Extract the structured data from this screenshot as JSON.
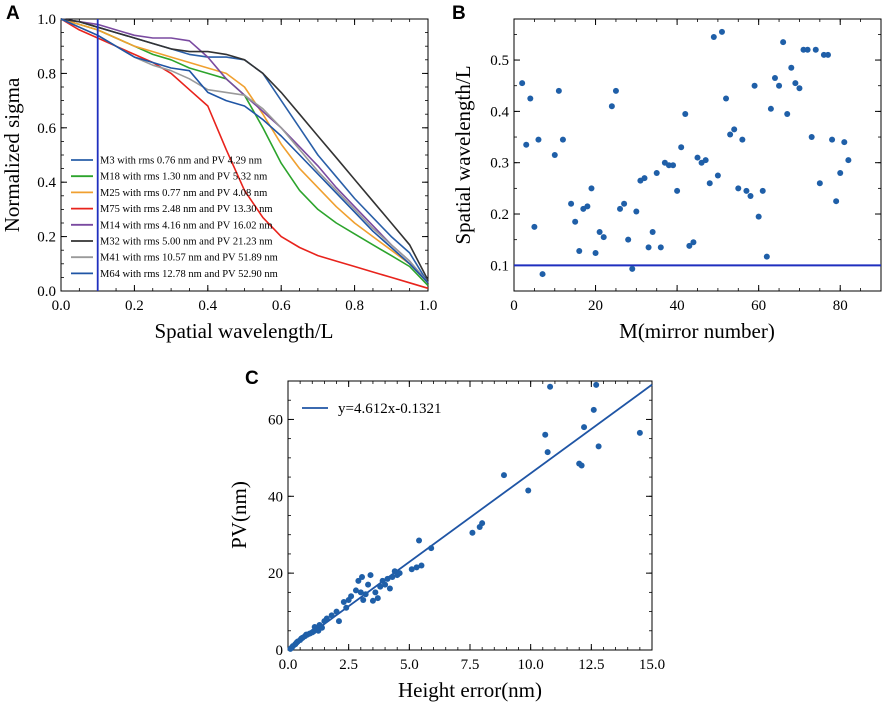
{
  "chart_data": [
    {
      "panel": "A",
      "type": "line",
      "xlabel": "Spatial wavelength/L",
      "ylabel": "Normalized sigma",
      "xlim": [
        0.0,
        1.0
      ],
      "ylim": [
        0.0,
        1.0
      ],
      "xticks": [
        "0.0",
        "0.2",
        "0.4",
        "0.6",
        "0.8",
        "1.0"
      ],
      "yticks": [
        "0.0",
        "0.2",
        "0.4",
        "0.6",
        "0.8",
        "1.0"
      ],
      "vertical_line": {
        "x": 0.1,
        "color": "#1f2fbf"
      },
      "legend_position": "lower-left",
      "series": [
        {
          "name": "M3 with rms 0.76 nm and PV 4.29 nm",
          "color": "#2a5fa8",
          "x": [
            0,
            0.05,
            0.1,
            0.15,
            0.2,
            0.25,
            0.3,
            0.35,
            0.4,
            0.45,
            0.5,
            0.55,
            0.6,
            0.65,
            0.7,
            0.75,
            0.8,
            0.85,
            0.9,
            0.95,
            1.0
          ],
          "y": [
            1.0,
            0.99,
            0.97,
            0.95,
            0.93,
            0.91,
            0.89,
            0.87,
            0.86,
            0.86,
            0.85,
            0.8,
            0.7,
            0.6,
            0.5,
            0.42,
            0.34,
            0.27,
            0.2,
            0.14,
            0.03
          ]
        },
        {
          "name": "M18 with rms 1.30 nm and PV 5.32 nm",
          "color": "#2ca42c",
          "x": [
            0,
            0.05,
            0.1,
            0.15,
            0.2,
            0.25,
            0.3,
            0.35,
            0.4,
            0.45,
            0.5,
            0.55,
            0.6,
            0.65,
            0.7,
            0.75,
            0.8,
            0.85,
            0.9,
            0.95,
            1.0
          ],
          "y": [
            1.0,
            0.98,
            0.96,
            0.93,
            0.9,
            0.87,
            0.85,
            0.82,
            0.8,
            0.78,
            0.72,
            0.6,
            0.47,
            0.37,
            0.3,
            0.25,
            0.21,
            0.17,
            0.13,
            0.09,
            0.02
          ]
        },
        {
          "name": "M25 with rms 0.77 nm and PV 4.08 nm",
          "color": "#f0a030",
          "x": [
            0,
            0.05,
            0.1,
            0.15,
            0.2,
            0.25,
            0.3,
            0.35,
            0.4,
            0.45,
            0.5,
            0.55,
            0.6,
            0.65,
            0.7,
            0.75,
            0.8,
            0.85,
            0.9,
            0.95,
            1.0
          ],
          "y": [
            1.0,
            0.98,
            0.96,
            0.93,
            0.9,
            0.88,
            0.86,
            0.84,
            0.82,
            0.8,
            0.75,
            0.65,
            0.54,
            0.45,
            0.38,
            0.31,
            0.25,
            0.2,
            0.15,
            0.1,
            0.03
          ]
        },
        {
          "name": "M75 with rms 2.48 nm and PV 13.30 nm",
          "color": "#e8231c",
          "x": [
            0,
            0.05,
            0.1,
            0.15,
            0.2,
            0.25,
            0.3,
            0.35,
            0.4,
            0.45,
            0.5,
            0.55,
            0.6,
            0.65,
            0.7,
            0.75,
            0.8,
            0.85,
            0.9,
            0.95,
            1.0
          ],
          "y": [
            1.0,
            0.96,
            0.93,
            0.9,
            0.87,
            0.84,
            0.8,
            0.74,
            0.68,
            0.52,
            0.37,
            0.27,
            0.2,
            0.16,
            0.13,
            0.11,
            0.09,
            0.07,
            0.05,
            0.03,
            0.01
          ]
        },
        {
          "name": "M14 with rms 4.16 nm and PV 16.02 nm",
          "color": "#7a4aa0",
          "x": [
            0,
            0.05,
            0.1,
            0.15,
            0.2,
            0.25,
            0.3,
            0.35,
            0.4,
            0.45,
            0.5,
            0.55,
            0.6,
            0.65,
            0.7,
            0.75,
            0.8,
            0.85,
            0.9,
            0.95,
            1.0
          ],
          "y": [
            1.0,
            0.99,
            0.98,
            0.96,
            0.94,
            0.93,
            0.93,
            0.92,
            0.86,
            0.78,
            0.72,
            0.66,
            0.6,
            0.53,
            0.46,
            0.38,
            0.31,
            0.24,
            0.17,
            0.11,
            0.03
          ]
        },
        {
          "name": "M32 with rms 5.00 nm and PV 21.23 nm",
          "color": "#333333",
          "x": [
            0,
            0.05,
            0.1,
            0.15,
            0.2,
            0.25,
            0.3,
            0.35,
            0.4,
            0.45,
            0.5,
            0.55,
            0.6,
            0.65,
            0.7,
            0.75,
            0.8,
            0.85,
            0.9,
            0.95,
            1.0
          ],
          "y": [
            1.0,
            0.99,
            0.97,
            0.95,
            0.93,
            0.91,
            0.89,
            0.88,
            0.88,
            0.87,
            0.85,
            0.8,
            0.73,
            0.65,
            0.57,
            0.49,
            0.41,
            0.33,
            0.25,
            0.17,
            0.04
          ]
        },
        {
          "name": "M41 with rms 10.57 nm and PV 51.89 nm",
          "color": "#9a9a9a",
          "x": [
            0,
            0.05,
            0.1,
            0.15,
            0.2,
            0.25,
            0.3,
            0.35,
            0.4,
            0.45,
            0.5,
            0.55,
            0.6,
            0.65,
            0.7,
            0.75,
            0.8,
            0.85,
            0.9,
            0.95,
            1.0
          ],
          "y": [
            1.0,
            0.97,
            0.94,
            0.9,
            0.86,
            0.83,
            0.81,
            0.78,
            0.74,
            0.73,
            0.72,
            0.67,
            0.6,
            0.52,
            0.44,
            0.37,
            0.3,
            0.23,
            0.17,
            0.11,
            0.03
          ]
        },
        {
          "name": "M64 with rms 12.78 nm and PV 52.90 nm",
          "color": "#1f55a5",
          "x": [
            0,
            0.05,
            0.1,
            0.15,
            0.2,
            0.25,
            0.3,
            0.35,
            0.4,
            0.45,
            0.5,
            0.55,
            0.6,
            0.65,
            0.7,
            0.75,
            0.8,
            0.85,
            0.9,
            0.95,
            1.0
          ],
          "y": [
            1.0,
            0.97,
            0.94,
            0.9,
            0.86,
            0.84,
            0.82,
            0.81,
            0.73,
            0.7,
            0.68,
            0.63,
            0.57,
            0.5,
            0.43,
            0.36,
            0.29,
            0.22,
            0.16,
            0.1,
            0.03
          ]
        }
      ]
    },
    {
      "panel": "B",
      "type": "scatter",
      "xlabel": "M(mirror number)",
      "ylabel": "Spatial wavelength/L",
      "xlim": [
        0,
        90
      ],
      "ylim": [
        0.05,
        0.58
      ],
      "xticks": [
        "0",
        "20",
        "40",
        "60",
        "80"
      ],
      "yticks": [
        "0.1",
        "0.2",
        "0.3",
        "0.4",
        "0.5"
      ],
      "hline": {
        "y": 0.1,
        "color": "#1f2fbf"
      },
      "marker_color": "#1f5fa8",
      "x": [
        2,
        3,
        4,
        5,
        6,
        7,
        10,
        11,
        12,
        14,
        15,
        16,
        17,
        18,
        19,
        20,
        21,
        22,
        24,
        25,
        26,
        27,
        28,
        29,
        30,
        31,
        32,
        33,
        34,
        35,
        36,
        37,
        38,
        39,
        40,
        41,
        42,
        43,
        44,
        45,
        46,
        47,
        48,
        49,
        50,
        51,
        52,
        53,
        54,
        55,
        56,
        57,
        58,
        59,
        60,
        61,
        62,
        63,
        64,
        65,
        66,
        67,
        68,
        69,
        70,
        71,
        72,
        73,
        74,
        75,
        76,
        77,
        78,
        79,
        80,
        81,
        82
      ],
      "y": [
        0.455,
        0.335,
        0.425,
        0.175,
        0.345,
        0.083,
        0.315,
        0.44,
        0.345,
        0.22,
        0.185,
        0.128,
        0.21,
        0.215,
        0.25,
        0.124,
        0.165,
        0.155,
        0.41,
        0.44,
        0.21,
        0.22,
        0.15,
        0.093,
        0.205,
        0.265,
        0.27,
        0.135,
        0.165,
        0.28,
        0.135,
        0.3,
        0.295,
        0.295,
        0.245,
        0.33,
        0.395,
        0.138,
        0.145,
        0.31,
        0.3,
        0.305,
        0.26,
        0.545,
        0.275,
        0.555,
        0.425,
        0.355,
        0.365,
        0.25,
        0.345,
        0.245,
        0.235,
        0.45,
        0.195,
        0.245,
        0.117,
        0.405,
        0.465,
        0.45,
        0.535,
        0.395,
        0.485,
        0.455,
        0.445,
        0.52,
        0.52,
        0.35,
        0.52,
        0.26,
        0.51,
        0.51,
        0.345,
        0.225,
        0.28,
        0.34,
        0.305
      ]
    },
    {
      "panel": "C",
      "type": "scatter",
      "xlabel": "Height error(nm)",
      "ylabel": "PV(nm)",
      "xlim": [
        0.0,
        15.0
      ],
      "ylim": [
        0,
        70
      ],
      "xticks": [
        "0.0",
        "2.5",
        "5.0",
        "7.5",
        "10.0",
        "12.5",
        "15.0"
      ],
      "yticks": [
        "0",
        "20",
        "40",
        "60"
      ],
      "marker_color": "#1f5fa8",
      "fit": {
        "label": "y=4.612x-0.1321",
        "slope": 4.612,
        "intercept": -0.1321,
        "color": "#1f55a5"
      },
      "legend_position": "top-left",
      "x": [
        0.1,
        0.15,
        0.2,
        0.3,
        0.35,
        0.4,
        0.5,
        0.55,
        0.6,
        0.7,
        0.75,
        0.8,
        0.9,
        1.0,
        1.05,
        1.1,
        1.2,
        1.25,
        1.3,
        1.4,
        1.5,
        1.6,
        1.8,
        2.0,
        2.1,
        2.3,
        2.4,
        2.5,
        2.6,
        2.8,
        2.9,
        3.0,
        3.05,
        3.1,
        3.2,
        3.3,
        3.4,
        3.5,
        3.6,
        3.7,
        3.8,
        3.9,
        4.0,
        4.1,
        4.2,
        4.3,
        4.4,
        4.5,
        4.6,
        5.1,
        5.3,
        5.4,
        5.5,
        5.9,
        7.6,
        7.9,
        8.0,
        8.9,
        9.9,
        10.6,
        10.7,
        10.8,
        12.0,
        12.1,
        12.2,
        12.6,
        12.7,
        12.8,
        14.5
      ],
      "y": [
        0.3,
        0.6,
        1.0,
        1.5,
        1.9,
        2.2,
        2.6,
        3.0,
        3.2,
        3.6,
        4.0,
        4.0,
        4.3,
        4.6,
        4.8,
        6.0,
        5.3,
        5.0,
        6.5,
        5.8,
        7.5,
        8.2,
        9.0,
        10.0,
        7.5,
        12.5,
        11.0,
        13.0,
        14.0,
        15.5,
        18.0,
        15.0,
        19.0,
        13.0,
        14.5,
        17.0,
        19.5,
        12.8,
        15.0,
        13.5,
        16.5,
        18.0,
        17.0,
        18.5,
        16.0,
        19.0,
        20.5,
        19.5,
        20.0,
        21.0,
        21.5,
        28.5,
        22.0,
        26.5,
        30.5,
        32.0,
        33.0,
        45.5,
        41.5,
        56.0,
        51.5,
        68.5,
        48.5,
        48.0,
        58.0,
        62.5,
        69.0,
        53.0,
        56.5
      ]
    }
  ]
}
